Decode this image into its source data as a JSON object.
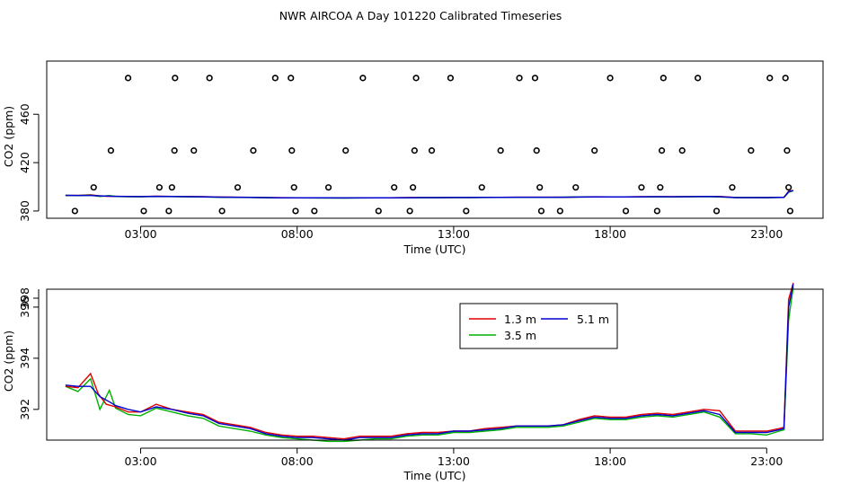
{
  "title": "NWR AIRCOA A  Day 101220  Calibrated Timeseries",
  "colors": {
    "s1": "#e00000",
    "s2": "#00b000",
    "s3": "#0000d0",
    "markers": "#000000",
    "axis": "#000000"
  },
  "chart_data": [
    {
      "type": "scatter",
      "xlabel": "Time (UTC)",
      "ylabel": "CO2 (ppm)",
      "xlim": [
        0,
        24.8
      ],
      "ylim": [
        374,
        504
      ],
      "xticks": [
        3,
        8,
        13,
        18,
        23
      ],
      "xtick_labels": [
        "03:00",
        "08:00",
        "13:00",
        "18:00",
        "23:00"
      ],
      "yticks": [
        380,
        420,
        460
      ],
      "ytick_labels": [
        "380",
        "420",
        "460"
      ],
      "markers": [
        [
          0.9,
          380
        ],
        [
          1.5,
          399.5
        ],
        [
          2.05,
          430
        ],
        [
          2.6,
          490
        ],
        [
          3.1,
          380
        ],
        [
          3.6,
          399.5
        ],
        [
          3.9,
          380
        ],
        [
          4.0,
          399.5
        ],
        [
          4.08,
          430
        ],
        [
          4.1,
          490
        ],
        [
          4.7,
          430
        ],
        [
          5.2,
          490
        ],
        [
          5.6,
          380
        ],
        [
          6.1,
          399.5
        ],
        [
          6.6,
          430
        ],
        [
          7.3,
          490
        ],
        [
          7.8,
          490
        ],
        [
          7.83,
          430
        ],
        [
          7.9,
          399.5
        ],
        [
          7.95,
          380
        ],
        [
          8.55,
          380
        ],
        [
          9.0,
          399.5
        ],
        [
          9.55,
          430
        ],
        [
          10.1,
          490
        ],
        [
          10.6,
          380
        ],
        [
          11.1,
          399.5
        ],
        [
          11.6,
          380
        ],
        [
          11.7,
          399.5
        ],
        [
          11.75,
          430
        ],
        [
          11.8,
          490
        ],
        [
          12.3,
          430
        ],
        [
          12.9,
          490
        ],
        [
          13.4,
          380
        ],
        [
          13.9,
          399.5
        ],
        [
          14.5,
          430
        ],
        [
          15.1,
          490
        ],
        [
          15.6,
          490
        ],
        [
          15.65,
          430
        ],
        [
          15.75,
          399.5
        ],
        [
          15.8,
          380
        ],
        [
          16.4,
          380
        ],
        [
          16.9,
          399.5
        ],
        [
          17.5,
          430
        ],
        [
          18.0,
          490
        ],
        [
          18.5,
          380
        ],
        [
          19.0,
          399.5
        ],
        [
          19.5,
          380
        ],
        [
          19.6,
          399.5
        ],
        [
          19.65,
          430
        ],
        [
          19.7,
          490
        ],
        [
          20.3,
          430
        ],
        [
          20.8,
          490
        ],
        [
          21.4,
          380
        ],
        [
          21.9,
          399.5
        ],
        [
          22.5,
          430
        ],
        [
          23.1,
          490
        ],
        [
          23.6,
          490
        ],
        [
          23.65,
          430
        ],
        [
          23.7,
          399.5
        ],
        [
          23.75,
          380
        ]
      ],
      "series_names": [
        "1.3 m",
        "3.5 m",
        "5.1 m"
      ]
    },
    {
      "type": "line",
      "xlabel": "Time (UTC)",
      "ylabel": "CO2 (ppm)",
      "xlim": [
        0,
        24.8
      ],
      "ylim": [
        390.8,
        396.7
      ],
      "xticks": [
        3,
        8,
        13,
        18,
        23
      ],
      "xtick_labels": [
        "03:00",
        "08:00",
        "13:00",
        "18:00",
        "23:00"
      ],
      "yticks": [
        392,
        394,
        396,
        398
      ],
      "ytick_labels": [
        "392",
        "394",
        "396",
        "398"
      ],
      "legend": {
        "position": "top-center",
        "entries": [
          "1.3 m",
          "3.5 m",
          "5.1 m"
        ]
      },
      "series": [
        {
          "name": "1.3 m",
          "x": [
            0.6,
            1.0,
            1.4,
            1.65,
            1.9,
            2.2,
            2.6,
            3.0,
            3.5,
            4.0,
            4.5,
            5.0,
            5.5,
            6.0,
            6.5,
            7.0,
            7.5,
            8.0,
            8.5,
            9.0,
            9.5,
            10.0,
            10.5,
            11.0,
            11.5,
            12.0,
            12.5,
            13.0,
            13.5,
            14.0,
            14.5,
            15.0,
            15.5,
            16.0,
            16.5,
            17.0,
            17.5,
            18.0,
            18.5,
            19.0,
            19.5,
            20.0,
            20.5,
            21.0,
            21.5,
            22.0,
            22.5,
            23.0,
            23.4,
            23.55,
            23.7,
            23.85
          ],
          "values": [
            392.9,
            392.85,
            393.4,
            392.6,
            392.2,
            392.1,
            391.9,
            391.9,
            392.2,
            392.0,
            391.9,
            391.8,
            391.5,
            391.4,
            391.3,
            391.1,
            391.0,
            390.95,
            390.95,
            390.9,
            390.85,
            390.95,
            390.95,
            390.95,
            391.05,
            391.1,
            391.1,
            391.15,
            391.15,
            391.25,
            391.3,
            391.35,
            391.35,
            391.35,
            391.4,
            391.6,
            391.75,
            391.7,
            391.7,
            391.8,
            391.85,
            391.8,
            391.9,
            392.0,
            391.95,
            391.15,
            391.15,
            391.15,
            391.25,
            391.3,
            396.3,
            396.95
          ]
        },
        {
          "name": "3.5 m",
          "x": [
            0.6,
            1.0,
            1.4,
            1.7,
            2.0,
            2.2,
            2.6,
            3.0,
            3.5,
            4.0,
            4.5,
            5.0,
            5.5,
            6.0,
            6.5,
            7.0,
            7.5,
            8.0,
            8.5,
            9.0,
            9.5,
            10.0,
            10.5,
            11.0,
            11.5,
            12.0,
            12.5,
            13.0,
            13.5,
            14.0,
            14.5,
            15.0,
            15.5,
            16.0,
            16.5,
            17.0,
            17.5,
            18.0,
            18.5,
            19.0,
            19.5,
            20.0,
            20.5,
            21.0,
            21.5,
            22.0,
            22.5,
            23.0,
            23.4,
            23.55,
            23.7,
            23.85
          ],
          "values": [
            392.9,
            392.7,
            393.2,
            392.0,
            392.75,
            392.05,
            391.8,
            391.75,
            392.05,
            391.9,
            391.75,
            391.65,
            391.35,
            391.25,
            391.15,
            391.0,
            390.9,
            390.85,
            390.8,
            390.75,
            390.75,
            390.8,
            390.85,
            390.85,
            390.95,
            391.0,
            391.0,
            391.1,
            391.1,
            391.15,
            391.2,
            391.3,
            391.3,
            391.3,
            391.35,
            391.5,
            391.65,
            391.6,
            391.6,
            391.7,
            391.75,
            391.7,
            391.8,
            391.9,
            391.7,
            391.05,
            391.05,
            391.0,
            391.15,
            391.2,
            395.5,
            396.8
          ]
        },
        {
          "name": "5.1 m",
          "x": [
            0.6,
            1.0,
            1.4,
            1.7,
            2.0,
            2.2,
            2.6,
            3.0,
            3.5,
            4.0,
            4.5,
            5.0,
            5.5,
            6.0,
            6.5,
            7.0,
            7.5,
            8.0,
            8.5,
            9.0,
            9.5,
            10.0,
            10.5,
            11.0,
            11.5,
            12.0,
            12.5,
            13.0,
            13.5,
            14.0,
            14.5,
            15.0,
            15.5,
            16.0,
            16.5,
            17.0,
            17.5,
            18.0,
            18.5,
            19.0,
            19.5,
            20.0,
            20.5,
            21.0,
            21.5,
            22.0,
            22.5,
            23.0,
            23.4,
            23.55,
            23.7,
            23.85
          ],
          "values": [
            392.95,
            392.9,
            392.9,
            392.5,
            392.3,
            392.15,
            392.0,
            391.9,
            392.1,
            392.0,
            391.85,
            391.75,
            391.45,
            391.35,
            391.25,
            391.05,
            390.95,
            390.9,
            390.9,
            390.85,
            390.8,
            390.9,
            390.9,
            390.9,
            391.0,
            391.05,
            391.05,
            391.15,
            391.15,
            391.2,
            391.25,
            391.35,
            391.35,
            391.35,
            391.4,
            391.55,
            391.7,
            391.65,
            391.65,
            391.75,
            391.8,
            391.75,
            391.85,
            391.95,
            391.8,
            391.1,
            391.1,
            391.1,
            391.2,
            391.25,
            396.0,
            396.9
          ]
        }
      ]
    }
  ]
}
